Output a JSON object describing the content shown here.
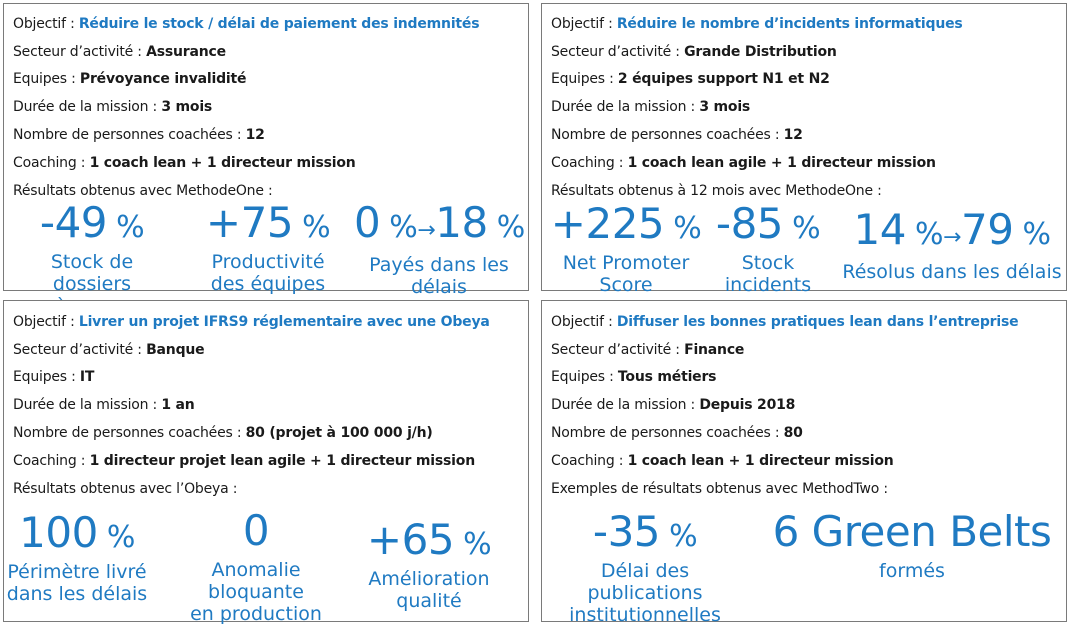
{
  "cards": [
    {
      "objectif_label": "Objectif : ",
      "objectif_value": "Réduire le stock / délai de paiement des indemnités",
      "secteur_label": "Secteur d’activité : ",
      "secteur_value": "Assurance",
      "equipes_label": "Equipes : ",
      "equipes_value": "Prévoyance invalidité",
      "duree_label": "Durée de la mission : ",
      "duree_value": "3 mois",
      "nombre_label": "Nombre de personnes coachées : ",
      "nombre_value": "12",
      "coaching_label": "Coaching : ",
      "coaching_value": "1 coach lean + 1 directeur mission",
      "results_label": "Résultats obtenus avec MethodeOne :",
      "metrics": [
        {
          "num": "-49",
          "unit": " %",
          "caption": "Stock de dossiers\nà payer"
        },
        {
          "num": "+75",
          "unit": " %",
          "caption": "Productivité\ndes équipes"
        },
        {
          "num_a": "0",
          "unit_a": " %",
          "arrow": "→",
          "num_b": "18",
          "unit_b": " %",
          "caption": "Payés dans les\ndélais"
        }
      ]
    },
    {
      "objectif_label": "Objectif : ",
      "objectif_value": "Réduire le nombre d’incidents informatiques",
      "secteur_label": "Secteur d’activité : ",
      "secteur_value": "Grande Distribution",
      "equipes_label": "Equipes : ",
      "equipes_value": "2 équipes support N1 et N2",
      "duree_label": "Durée de la mission : ",
      "duree_value": "3 mois",
      "nombre_label": "Nombre de personnes coachées : ",
      "nombre_value": "12",
      "coaching_label": "Coaching : ",
      "coaching_value": "1 coach lean agile + 1 directeur mission",
      "results_label": "Résultats obtenus à 12 mois avec MethodeOne :",
      "metrics": [
        {
          "num": "+225",
          "unit": " %",
          "caption": "Net Promoter\nScore"
        },
        {
          "num": "-85",
          "unit": " %",
          "caption": "Stock\nincidents"
        },
        {
          "num_a": "14",
          "unit_a": " %",
          "arrow": "→",
          "num_b": "79",
          "unit_b": " %",
          "caption": "Résolus dans les délais"
        }
      ]
    },
    {
      "objectif_label": "Objectif : ",
      "objectif_value": "Livrer un projet IFRS9 réglementaire avec une Obeya",
      "secteur_label": "Secteur d’activité : ",
      "secteur_value": "Banque",
      "equipes_label": "Equipes : ",
      "equipes_value": "IT",
      "duree_label": "Durée de la mission : ",
      "duree_value": "1 an",
      "nombre_label": "Nombre de personnes coachées : ",
      "nombre_value": "80 (projet à 100 000 j/h)",
      "coaching_label": "Coaching : ",
      "coaching_value": "1 directeur projet lean agile + 1 directeur mission",
      "results_label": "Résultats obtenus avec l’Obeya :",
      "metrics": [
        {
          "num": "100",
          "unit": " %",
          "caption": "Périmètre livré\ndans les délais"
        },
        {
          "num": "0",
          "unit": "",
          "caption": "Anomalie\nbloquante\nen  production"
        },
        {
          "num": "+65",
          "unit": " %",
          "caption": "Amélioration\nqualité"
        }
      ]
    },
    {
      "objectif_label": "Objectif : ",
      "objectif_value": "Diffuser les bonnes pratiques lean dans l’entreprise",
      "secteur_label": "Secteur d’activité : ",
      "secteur_value": "Finance",
      "equipes_label": "Equipes :  ",
      "equipes_value": "Tous métiers",
      "duree_label": "Durée de la mission : ",
      "duree_value": "Depuis 2018",
      "nombre_label": "Nombre de personnes coachées : ",
      "nombre_value": "80",
      "coaching_label": "Coaching : ",
      "coaching_value": "1 coach lean + 1 directeur mission",
      "results_label": "Exemples de résultats obtenus avec MethodTwo :",
      "metrics": [
        {
          "num": "-35",
          "unit": " %",
          "caption": "Délai des\npublications\ninstitutionnelles"
        },
        {
          "num": "6 Green Belts",
          "unit": "",
          "caption": "formés"
        }
      ]
    }
  ]
}
